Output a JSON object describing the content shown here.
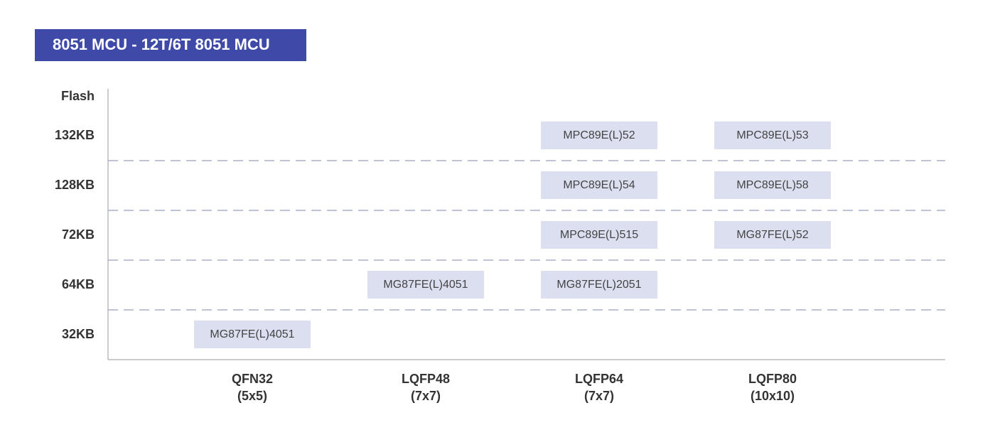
{
  "title": "8051 MCU - 12T/6T 8051 MCU",
  "axis_label": "Flash",
  "columns": [
    {
      "name": "QFN32",
      "size": "(5x5)"
    },
    {
      "name": "LQFP48",
      "size": "(7x7)"
    },
    {
      "name": "LQFP64",
      "size": "(7x7)"
    },
    {
      "name": "LQFP80",
      "size": "(10x10)"
    }
  ],
  "rows": [
    {
      "flash": "132KB",
      "parts": [
        null,
        null,
        "MPC89E(L)52",
        "MPC89E(L)53"
      ]
    },
    {
      "flash": "128KB",
      "parts": [
        null,
        null,
        "MPC89E(L)54",
        "MPC89E(L)58"
      ]
    },
    {
      "flash": "72KB",
      "parts": [
        null,
        null,
        "MPC89E(L)515",
        "MG87FE(L)52"
      ]
    },
    {
      "flash": "64KB",
      "parts": [
        null,
        "MG87FE(L)4051",
        "MG87FE(L)2051",
        null
      ]
    },
    {
      "flash": "32KB",
      "parts": [
        "MG87FE(L)4051",
        null,
        null,
        null
      ]
    }
  ]
}
